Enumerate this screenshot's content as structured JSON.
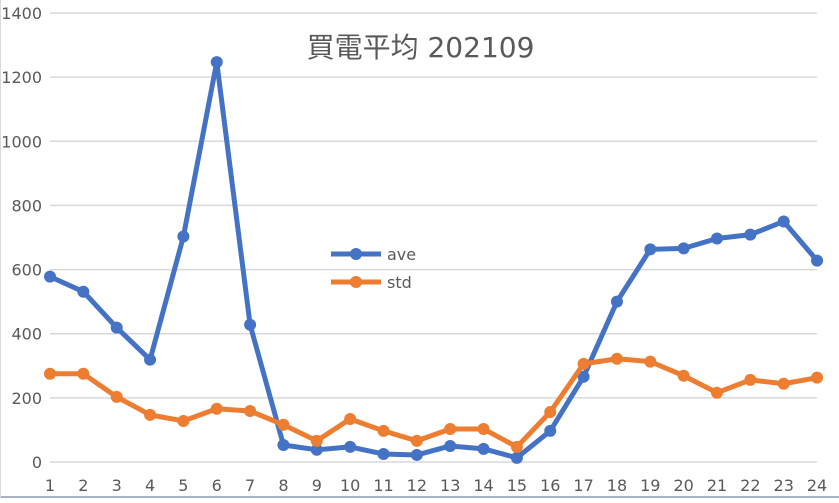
{
  "chart_data": {
    "type": "line",
    "title": "買電平均 202109",
    "xlabel": "",
    "ylabel": "",
    "categories": [
      "1",
      "2",
      "3",
      "4",
      "5",
      "6",
      "7",
      "8",
      "9",
      "10",
      "11",
      "12",
      "13",
      "14",
      "15",
      "16",
      "17",
      "18",
      "19",
      "20",
      "21",
      "22",
      "23",
      "24"
    ],
    "series": [
      {
        "name": "ave",
        "color": "#4472c4",
        "values": [
          578,
          531,
          419,
          319,
          703,
          1247,
          428,
          53,
          38,
          47,
          25,
          22,
          50,
          41,
          13,
          97,
          266,
          500,
          663,
          666,
          697,
          709,
          750,
          628
        ]
      },
      {
        "name": "std",
        "color": "#ed7d31",
        "values": [
          275,
          275,
          203,
          147,
          128,
          166,
          159,
          116,
          66,
          134,
          97,
          66,
          103,
          103,
          47,
          156,
          306,
          322,
          313,
          269,
          216,
          256,
          244,
          263
        ]
      }
    ],
    "ylim": [
      0,
      1400
    ],
    "yticks": [
      0,
      200,
      400,
      600,
      800,
      1000,
      1200,
      1400
    ],
    "grid": true,
    "legend_position": "inside-center-left"
  },
  "legend": {
    "items": [
      {
        "label": "ave",
        "color": "#4472c4"
      },
      {
        "label": "std",
        "color": "#ed7d31"
      }
    ]
  }
}
